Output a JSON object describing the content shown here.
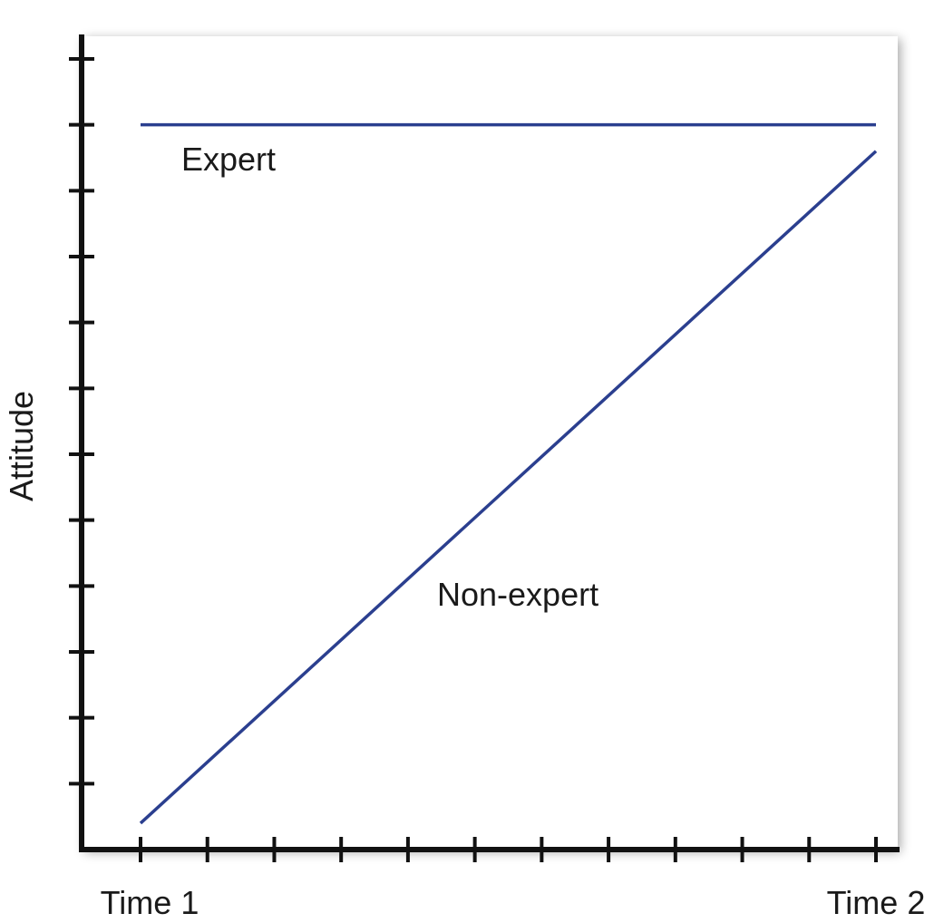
{
  "chart_data": {
    "type": "line",
    "title": "",
    "xlabel": "",
    "ylabel": "Attitude",
    "x": [
      "Time 1",
      "Time 2"
    ],
    "xlim": [
      0,
      11
    ],
    "ylim": [
      0,
      12
    ],
    "x_ticks": 12,
    "y_ticks": 12,
    "grid": false,
    "line_color": "#2b3f8f",
    "series": [
      {
        "name": "Expert",
        "values": [
          11,
          11
        ]
      },
      {
        "name": "Non-expert",
        "values": [
          0.4,
          10.6
        ]
      }
    ]
  }
}
